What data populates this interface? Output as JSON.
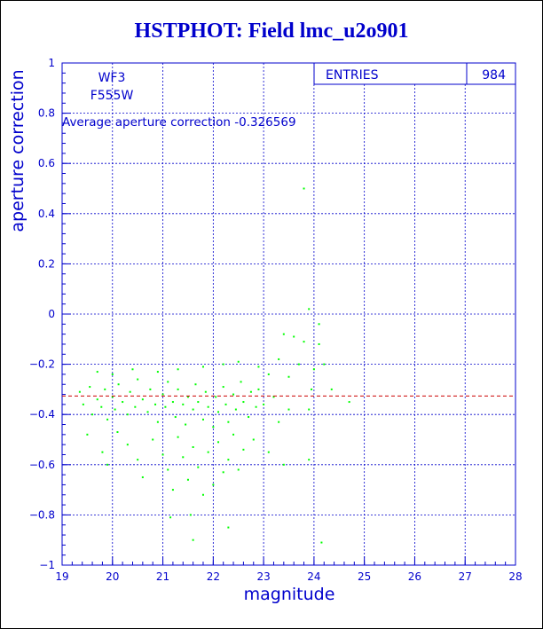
{
  "title": "HSTPHOT: Field lmc_u2o901",
  "stats_box": {
    "label": "ENTRIES",
    "value": "984"
  },
  "filter_label": {
    "line1": "WF3",
    "line2": "F555W"
  },
  "annotation": "Average aperture correction -0.326569",
  "colors": {
    "axes": "#0000cc",
    "points": "#00ff00",
    "average_line": "#cc0000"
  },
  "chart_data": {
    "type": "scatter",
    "title": "HSTPHOT: Field lmc_u2o901",
    "xlabel": "magnitude",
    "ylabel": "aperture correction",
    "xlim": [
      19,
      28
    ],
    "ylim": [
      -1,
      1
    ],
    "xticks": [
      "19",
      "20",
      "21",
      "22",
      "23",
      "24",
      "25",
      "26",
      "27",
      "28"
    ],
    "yticks": [
      "-1",
      "-0.8",
      "-0.6",
      "-0.4",
      "-0.2",
      "0",
      "0.2",
      "0.4",
      "0.6",
      "0.8",
      "1"
    ],
    "grid": true,
    "average_line": -0.326569,
    "n_points": 984,
    "points": [
      [
        19.35,
        -0.31
      ],
      [
        19.42,
        -0.36
      ],
      [
        19.55,
        -0.29
      ],
      [
        19.6,
        -0.4
      ],
      [
        19.7,
        -0.34
      ],
      [
        19.78,
        -0.37
      ],
      [
        19.85,
        -0.3
      ],
      [
        19.9,
        -0.42
      ],
      [
        20.0,
        -0.33
      ],
      [
        20.05,
        -0.38
      ],
      [
        20.12,
        -0.28
      ],
      [
        20.2,
        -0.35
      ],
      [
        20.3,
        -0.4
      ],
      [
        20.35,
        -0.31
      ],
      [
        20.45,
        -0.37
      ],
      [
        20.5,
        -0.26
      ],
      [
        20.6,
        -0.34
      ],
      [
        20.7,
        -0.39
      ],
      [
        20.75,
        -0.3
      ],
      [
        20.85,
        -0.36
      ],
      [
        20.9,
        -0.43
      ],
      [
        21.0,
        -0.32
      ],
      [
        21.05,
        -0.37
      ],
      [
        21.1,
        -0.27
      ],
      [
        21.2,
        -0.35
      ],
      [
        21.25,
        -0.41
      ],
      [
        21.3,
        -0.3
      ],
      [
        21.4,
        -0.36
      ],
      [
        21.45,
        -0.44
      ],
      [
        21.5,
        -0.33
      ],
      [
        21.6,
        -0.38
      ],
      [
        21.65,
        -0.28
      ],
      [
        21.7,
        -0.35
      ],
      [
        21.8,
        -0.42
      ],
      [
        21.85,
        -0.31
      ],
      [
        21.9,
        -0.37
      ],
      [
        22.0,
        -0.45
      ],
      [
        22.05,
        -0.33
      ],
      [
        22.1,
        -0.39
      ],
      [
        22.2,
        -0.29
      ],
      [
        22.25,
        -0.36
      ],
      [
        22.3,
        -0.43
      ],
      [
        22.4,
        -0.32
      ],
      [
        22.45,
        -0.38
      ],
      [
        22.55,
        -0.27
      ],
      [
        22.6,
        -0.35
      ],
      [
        22.7,
        -0.41
      ],
      [
        22.75,
        -0.31
      ],
      [
        22.85,
        -0.37
      ],
      [
        22.9,
        -0.3
      ],
      [
        19.5,
        -0.48
      ],
      [
        19.8,
        -0.55
      ],
      [
        19.9,
        -0.6
      ],
      [
        20.1,
        -0.47
      ],
      [
        20.3,
        -0.52
      ],
      [
        20.5,
        -0.58
      ],
      [
        20.6,
        -0.65
      ],
      [
        20.8,
        -0.5
      ],
      [
        21.0,
        -0.56
      ],
      [
        21.1,
        -0.62
      ],
      [
        21.2,
        -0.7
      ],
      [
        21.3,
        -0.49
      ],
      [
        21.4,
        -0.57
      ],
      [
        21.5,
        -0.66
      ],
      [
        21.6,
        -0.53
      ],
      [
        21.7,
        -0.61
      ],
      [
        21.8,
        -0.72
      ],
      [
        21.9,
        -0.55
      ],
      [
        22.0,
        -0.68
      ],
      [
        22.1,
        -0.51
      ],
      [
        22.2,
        -0.63
      ],
      [
        22.3,
        -0.58
      ],
      [
        22.4,
        -0.48
      ],
      [
        22.5,
        -0.62
      ],
      [
        22.6,
        -0.54
      ],
      [
        22.8,
        -0.5
      ],
      [
        23.1,
        -0.55
      ],
      [
        23.4,
        -0.6
      ],
      [
        21.55,
        -0.8
      ],
      [
        21.15,
        -0.81
      ],
      [
        22.3,
        -0.85
      ],
      [
        21.6,
        -0.9
      ],
      [
        19.7,
        -0.23
      ],
      [
        20.0,
        -0.24
      ],
      [
        20.4,
        -0.22
      ],
      [
        20.9,
        -0.23
      ],
      [
        21.3,
        -0.22
      ],
      [
        21.8,
        -0.21
      ],
      [
        22.2,
        -0.2
      ],
      [
        22.5,
        -0.19
      ],
      [
        22.9,
        -0.21
      ],
      [
        23.1,
        -0.24
      ],
      [
        23.3,
        -0.18
      ],
      [
        23.4,
        -0.08
      ],
      [
        23.5,
        -0.25
      ],
      [
        23.6,
        -0.09
      ],
      [
        23.7,
        -0.2
      ],
      [
        23.8,
        -0.11
      ],
      [
        23.9,
        -0.38
      ],
      [
        23.9,
        -0.58
      ],
      [
        23.95,
        -0.3
      ],
      [
        24.0,
        -0.22
      ],
      [
        24.1,
        -0.12
      ],
      [
        24.2,
        -0.2
      ],
      [
        24.35,
        -0.3
      ],
      [
        24.7,
        -0.35
      ],
      [
        24.1,
        -0.04
      ],
      [
        23.9,
        0.02
      ],
      [
        23.8,
        0.5
      ],
      [
        24.15,
        -0.91
      ],
      [
        23.2,
        -0.33
      ],
      [
        23.5,
        -0.38
      ],
      [
        23.0,
        -0.36
      ],
      [
        23.3,
        -0.43
      ]
    ]
  }
}
